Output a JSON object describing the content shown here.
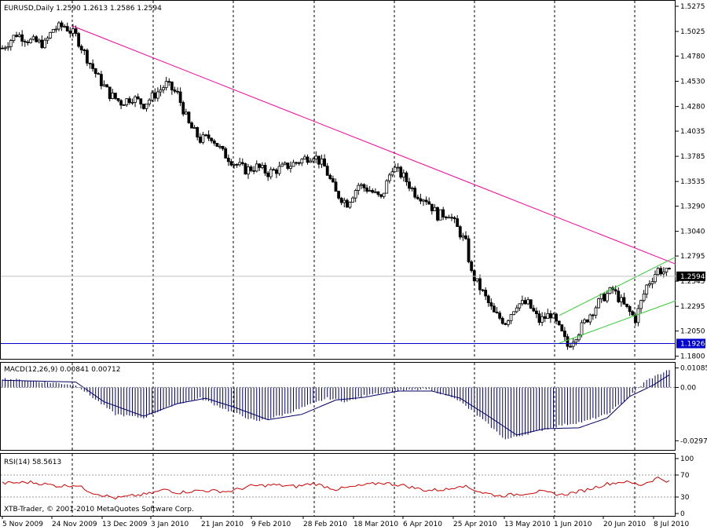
{
  "chart_data": [
    {
      "type": "candlestick",
      "panel": "price",
      "symbol_header": "EURUSD,Daily  1.2590 1.2613 1.2586 1.2594",
      "ylim": [
        1.1805,
        1.5275
      ],
      "price_ticks": [
        "1.5275",
        "1.5025",
        "1.4780",
        "1.4530",
        "1.4280",
        "1.4035",
        "1.3785",
        "1.3535",
        "1.3290",
        "1.3040",
        "1.2795",
        "1.2545",
        "1.2295",
        "1.2050",
        "1.1800"
      ],
      "current_price_label": "1.2594",
      "current_price": 1.2594,
      "horizontal_line_label": "1.1926",
      "horizontal_line": 1.1926,
      "colors": {
        "candle": "#000000",
        "trendline": "#ff0099",
        "channel": "#33cc33",
        "hline": "#0000cc",
        "price_marker": "#000000"
      },
      "anchors": [
        [
          0,
          1.486
        ],
        [
          5,
          1.5
        ],
        [
          10,
          1.493
        ],
        [
          15,
          1.49
        ],
        [
          18,
          1.505
        ],
        [
          22,
          1.508
        ],
        [
          26,
          1.498
        ],
        [
          30,
          1.476
        ],
        [
          34,
          1.456
        ],
        [
          38,
          1.44
        ],
        [
          42,
          1.432
        ],
        [
          46,
          1.437
        ],
        [
          50,
          1.43
        ],
        [
          54,
          1.44
        ],
        [
          58,
          1.45
        ],
        [
          62,
          1.44
        ],
        [
          66,
          1.41
        ],
        [
          70,
          1.395
        ],
        [
          74,
          1.398
        ],
        [
          78,
          1.382
        ],
        [
          82,
          1.372
        ],
        [
          86,
          1.365
        ],
        [
          90,
          1.368
        ],
        [
          94,
          1.362
        ],
        [
          98,
          1.366
        ],
        [
          102,
          1.37
        ],
        [
          106,
          1.375
        ],
        [
          110,
          1.38
        ],
        [
          114,
          1.368
        ],
        [
          118,
          1.342
        ],
        [
          122,
          1.332
        ],
        [
          126,
          1.35
        ],
        [
          130,
          1.345
        ],
        [
          134,
          1.336
        ],
        [
          138,
          1.368
        ],
        [
          142,
          1.358
        ],
        [
          146,
          1.342
        ],
        [
          150,
          1.336
        ],
        [
          154,
          1.32
        ],
        [
          158,
          1.322
        ],
        [
          160,
          1.312
        ],
        [
          164,
          1.292
        ],
        [
          166,
          1.262
        ],
        [
          170,
          1.243
        ],
        [
          174,
          1.222
        ],
        [
          178,
          1.214
        ],
        [
          182,
          1.232
        ],
        [
          186,
          1.232
        ],
        [
          190,
          1.215
        ],
        [
          194,
          1.222
        ],
        [
          198,
          1.202
        ],
        [
          200,
          1.19
        ],
        [
          204,
          1.205
        ],
        [
          208,
          1.222
        ],
        [
          212,
          1.237
        ],
        [
          216,
          1.246
        ],
        [
          220,
          1.23
        ],
        [
          224,
          1.217
        ],
        [
          228,
          1.25
        ],
        [
          232,
          1.266
        ],
        [
          236,
          1.262
        ]
      ]
    },
    {
      "type": "histogram",
      "panel": "macd",
      "label": "MACD(12,26,9) 0.00841 0.00712",
      "ylim": [
        -0.0335,
        0.012
      ],
      "ticks": [
        "0.01085",
        "0.00",
        "-0.02971"
      ],
      "anchors": [
        [
          0,
          0.005
        ],
        [
          26,
          0.0015
        ],
        [
          40,
          -0.015
        ],
        [
          50,
          -0.017
        ],
        [
          60,
          -0.01
        ],
        [
          70,
          -0.006
        ],
        [
          80,
          -0.013
        ],
        [
          90,
          -0.019
        ],
        [
          100,
          -0.015
        ],
        [
          115,
          -0.006
        ],
        [
          122,
          -0.008
        ],
        [
          130,
          -0.0035
        ],
        [
          140,
          -0.002
        ],
        [
          150,
          -0.001
        ],
        [
          160,
          -0.0055
        ],
        [
          170,
          -0.018
        ],
        [
          178,
          -0.029
        ],
        [
          188,
          -0.025
        ],
        [
          198,
          -0.021
        ],
        [
          206,
          -0.019
        ],
        [
          214,
          -0.015
        ],
        [
          222,
          -0.005
        ],
        [
          228,
          0.004
        ],
        [
          236,
          0.01
        ]
      ],
      "signal_anchors": [
        [
          0,
          0.004
        ],
        [
          26,
          0.003
        ],
        [
          36,
          -0.008
        ],
        [
          50,
          -0.016
        ],
        [
          62,
          -0.009
        ],
        [
          72,
          -0.006
        ],
        [
          82,
          -0.011
        ],
        [
          94,
          -0.018
        ],
        [
          106,
          -0.015
        ],
        [
          118,
          -0.007
        ],
        [
          128,
          -0.0055
        ],
        [
          140,
          -0.002
        ],
        [
          152,
          -0.002
        ],
        [
          162,
          -0.006
        ],
        [
          172,
          -0.016
        ],
        [
          182,
          -0.0265
        ],
        [
          192,
          -0.023
        ],
        [
          204,
          -0.0225
        ],
        [
          214,
          -0.017
        ],
        [
          222,
          -0.005
        ],
        [
          230,
          0.001
        ],
        [
          236,
          0.007
        ]
      ]
    },
    {
      "type": "line",
      "panel": "rsi",
      "label": "RSI(14) 58.5613",
      "ylim": [
        0,
        100
      ],
      "ticks": [
        "100",
        "70",
        "30",
        "0"
      ],
      "levels": [
        70,
        30
      ],
      "anchors": [
        [
          0,
          55
        ],
        [
          10,
          57
        ],
        [
          20,
          50
        ],
        [
          26,
          52
        ],
        [
          32,
          38
        ],
        [
          40,
          28
        ],
        [
          46,
          32
        ],
        [
          52,
          36
        ],
        [
          58,
          44
        ],
        [
          62,
          38
        ],
        [
          70,
          42
        ],
        [
          80,
          40
        ],
        [
          88,
          50
        ],
        [
          96,
          52
        ],
        [
          104,
          49
        ],
        [
          110,
          55
        ],
        [
          118,
          44
        ],
        [
          126,
          50
        ],
        [
          134,
          56
        ],
        [
          142,
          51
        ],
        [
          150,
          42
        ],
        [
          158,
          44
        ],
        [
          162,
          52
        ],
        [
          170,
          38
        ],
        [
          176,
          32
        ],
        [
          184,
          36
        ],
        [
          190,
          40
        ],
        [
          198,
          34
        ],
        [
          206,
          42
        ],
        [
          214,
          54
        ],
        [
          220,
          58
        ],
        [
          226,
          52
        ],
        [
          232,
          65
        ],
        [
          236,
          58
        ]
      ]
    }
  ],
  "x_axis": {
    "labels": [
      "5 Nov 2009",
      "24 Nov 2009",
      "13 Dec 2009",
      "3 Jan 2010",
      "21 Jan 2010",
      "9 Feb 2010",
      "28 Feb 2010",
      "18 Mar 2010",
      "6 Apr 2010",
      "25 Apr 2010",
      "13 May 2010",
      "1 Jun 2010",
      "20 Jun 2010",
      "8 Jul 2010"
    ]
  },
  "watermark": "XTB-Trader, © 2001-2010 MetaQuotes Software Corp."
}
